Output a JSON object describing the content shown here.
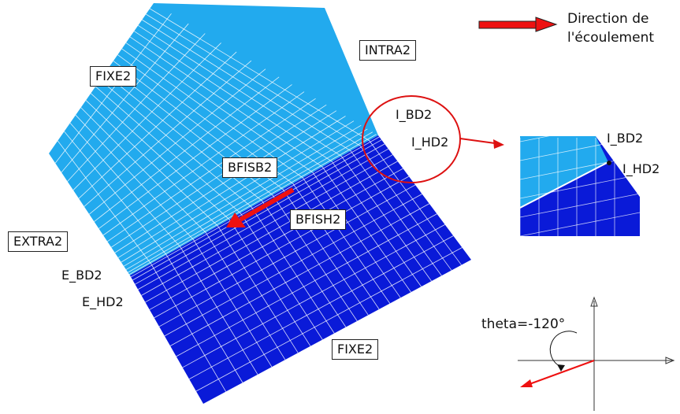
{
  "legend": {
    "line1": "Direction de",
    "line2": "l'écoulement",
    "arrow_color": "#ee1111"
  },
  "labels": {
    "intra": "INTRA2",
    "fixe_top": "FIXE2",
    "fixe_bottom": "FIXE2",
    "bfisb": "BFISB2",
    "bfish": "BFISH2",
    "extra": "EXTRA2",
    "e_bd": "E_BD2",
    "e_hd": "E_HD2",
    "i_bd": "I_BD2",
    "i_hd": "I_HD2"
  },
  "zoom": {
    "i_bd": "I_BD2",
    "i_hd": "I_HD2"
  },
  "axes": {
    "angle_label": "theta=-120°"
  },
  "colors": {
    "upper_block": "#22aaee",
    "lower_block": "#0a1ad8",
    "mesh_line": "#ffffff",
    "highlight": "#dd1111"
  }
}
